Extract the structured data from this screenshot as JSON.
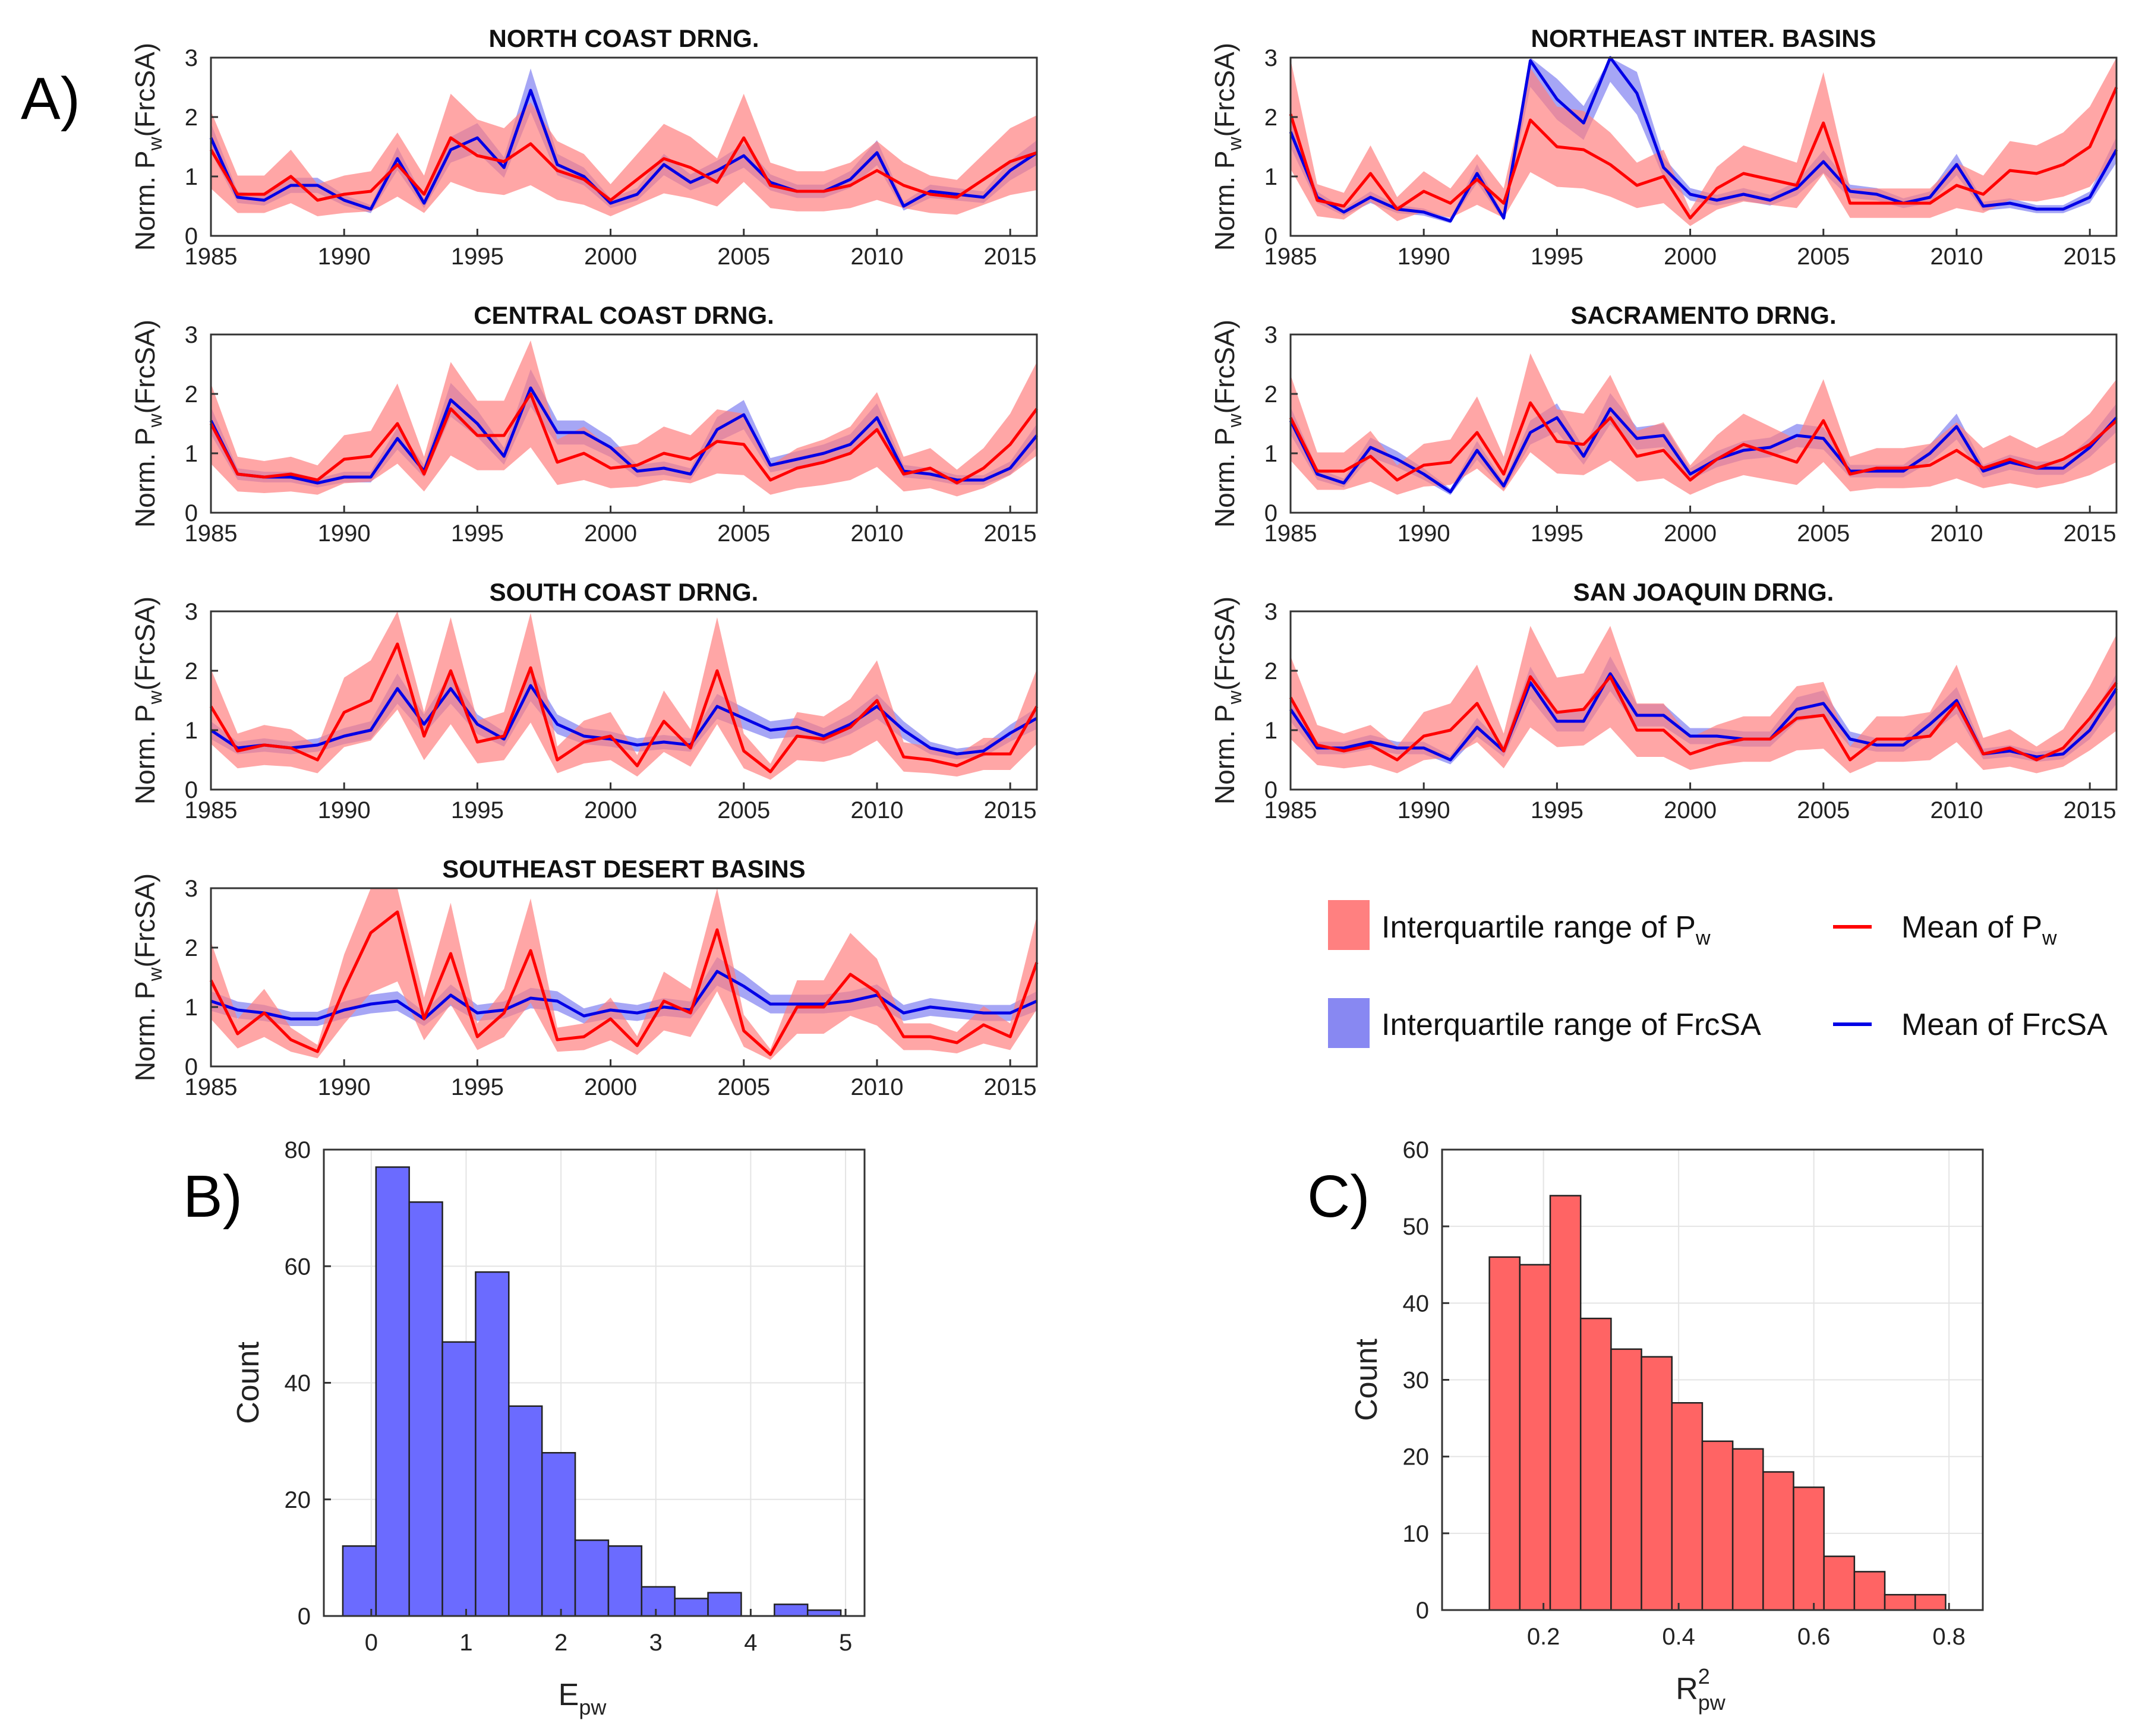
{
  "panel_labels": {
    "A": "A)",
    "B": "B)",
    "C": "C)"
  },
  "colors": {
    "pw_mean": "#ff0000",
    "pw_band": "#ff8080",
    "frcsa_mean": "#0000e6",
    "frcsa_band": "#8888f2",
    "hist_b": "#6b6bff",
    "hist_c": "#ff6464"
  },
  "legend": {
    "pw_iqr": "Interquartile range of P",
    "pw_iqr_sub": "w",
    "pw_mean": "Mean of P",
    "pw_mean_sub": "w",
    "fs_iqr": "Interquartile range of FrcSA",
    "fs_mean": "Mean of FrcSA"
  },
  "chart_data": [
    {
      "type": "line",
      "title": "NORTH COAST DRNG.",
      "ylabel": "Norm. P_w(FrcSA)",
      "ylabel_pre": "Norm. P",
      "ylabel_sub": "w",
      "ylabel_post": "(FrcSA)",
      "xlim": [
        1985,
        2016
      ],
      "ylim": [
        0,
        3
      ],
      "xticks": [
        1985,
        1990,
        1995,
        2000,
        2005,
        2010,
        2015
      ],
      "yticks": [
        0,
        1,
        2,
        3
      ],
      "x": [
        1985,
        1986,
        1987,
        1988,
        1989,
        1990,
        1991,
        1992,
        1993,
        1994,
        1995,
        1996,
        1997,
        1998,
        1999,
        2000,
        2001,
        2002,
        2003,
        2004,
        2005,
        2006,
        2007,
        2008,
        2009,
        2010,
        2011,
        2012,
        2013,
        2014,
        2015,
        2016
      ],
      "series": [
        {
          "name": "Mean of P_w",
          "values": [
            1.45,
            0.7,
            0.7,
            1.0,
            0.6,
            0.7,
            0.75,
            1.2,
            0.7,
            1.65,
            1.35,
            1.25,
            1.55,
            1.1,
            0.95,
            0.6,
            0.95,
            1.3,
            1.15,
            0.9,
            1.65,
            0.85,
            0.75,
            0.75,
            0.85,
            1.1,
            0.85,
            0.7,
            0.65,
            0.95,
            1.25,
            1.4
          ]
        },
        {
          "name": "Mean of FrcSA",
          "values": [
            1.65,
            0.65,
            0.6,
            0.85,
            0.85,
            0.6,
            0.45,
            1.3,
            0.55,
            1.45,
            1.65,
            1.15,
            2.45,
            1.2,
            1.0,
            0.55,
            0.7,
            1.2,
            0.9,
            1.1,
            1.35,
            0.9,
            0.75,
            0.75,
            0.95,
            1.4,
            0.5,
            0.75,
            0.7,
            0.65,
            1.1,
            1.4
          ]
        }
      ]
    },
    {
      "type": "line",
      "title": "NORTHEAST INTER. BASINS",
      "ylabel": "Norm. P_w(FrcSA)",
      "ylabel_pre": "Norm. P",
      "ylabel_sub": "w",
      "ylabel_post": "(FrcSA)",
      "xlim": [
        1985,
        2016
      ],
      "ylim": [
        0,
        3
      ],
      "xticks": [
        1985,
        1990,
        1995,
        2000,
        2005,
        2010,
        2015
      ],
      "yticks": [
        0,
        1,
        2,
        3
      ],
      "x": [
        1985,
        1986,
        1987,
        1988,
        1989,
        1990,
        1991,
        1992,
        1993,
        1994,
        1995,
        1996,
        1997,
        1998,
        1999,
        2000,
        2001,
        2002,
        2003,
        2004,
        2005,
        2006,
        2007,
        2008,
        2009,
        2010,
        2011,
        2012,
        2013,
        2014,
        2015,
        2016
      ],
      "series": [
        {
          "name": "Mean of P_w",
          "values": [
            2.05,
            0.6,
            0.5,
            1.05,
            0.45,
            0.75,
            0.55,
            0.95,
            0.55,
            1.95,
            1.5,
            1.45,
            1.2,
            0.85,
            1.0,
            0.3,
            0.8,
            1.05,
            0.95,
            0.85,
            1.9,
            0.55,
            0.55,
            0.55,
            0.55,
            0.85,
            0.7,
            1.1,
            1.05,
            1.2,
            1.5,
            2.5
          ]
        },
        {
          "name": "Mean of FrcSA",
          "values": [
            1.75,
            0.65,
            0.4,
            0.65,
            0.45,
            0.4,
            0.25,
            1.05,
            0.3,
            2.95,
            2.3,
            1.9,
            3.05,
            2.4,
            1.15,
            0.7,
            0.6,
            0.7,
            0.6,
            0.8,
            1.25,
            0.75,
            0.7,
            0.55,
            0.65,
            1.2,
            0.5,
            0.55,
            0.45,
            0.45,
            0.65,
            1.45
          ]
        }
      ]
    },
    {
      "type": "line",
      "title": "CENTRAL COAST DRNG.",
      "ylabel": "Norm. P_w(FrcSA)",
      "ylabel_pre": "Norm. P",
      "ylabel_sub": "w",
      "ylabel_post": "(FrcSA)",
      "xlim": [
        1985,
        2016
      ],
      "ylim": [
        0,
        3
      ],
      "xticks": [
        1985,
        1990,
        1995,
        2000,
        2005,
        2010,
        2015
      ],
      "yticks": [
        0,
        1,
        2,
        3
      ],
      "x": [
        1985,
        1986,
        1987,
        1988,
        1989,
        1990,
        1991,
        1992,
        1993,
        1994,
        1995,
        1996,
        1997,
        1998,
        1999,
        2000,
        2001,
        2002,
        2003,
        2004,
        2005,
        2006,
        2007,
        2008,
        2009,
        2010,
        2011,
        2012,
        2013,
        2014,
        2015,
        2016
      ],
      "series": [
        {
          "name": "Mean of P_w",
          "values": [
            1.5,
            0.65,
            0.6,
            0.65,
            0.55,
            0.9,
            0.95,
            1.5,
            0.65,
            1.75,
            1.3,
            1.3,
            2.0,
            0.85,
            1.0,
            0.75,
            0.8,
            1.0,
            0.9,
            1.2,
            1.15,
            0.55,
            0.75,
            0.85,
            1.0,
            1.4,
            0.65,
            0.75,
            0.5,
            0.75,
            1.15,
            1.75
          ]
        },
        {
          "name": "Mean of FrcSA",
          "values": [
            1.55,
            0.65,
            0.6,
            0.6,
            0.5,
            0.6,
            0.6,
            1.25,
            0.7,
            1.9,
            1.5,
            0.95,
            2.1,
            1.35,
            1.35,
            1.1,
            0.7,
            0.75,
            0.65,
            1.4,
            1.65,
            0.8,
            0.9,
            1.0,
            1.15,
            1.6,
            0.7,
            0.65,
            0.55,
            0.55,
            0.75,
            1.3
          ]
        }
      ]
    },
    {
      "type": "line",
      "title": "SACRAMENTO DRNG.",
      "ylabel": "Norm. P_w(FrcSA)",
      "ylabel_pre": "Norm. P",
      "ylabel_sub": "w",
      "ylabel_post": "(FrcSA)",
      "xlim": [
        1985,
        2016
      ],
      "ylim": [
        0,
        3
      ],
      "xticks": [
        1985,
        1990,
        1995,
        2000,
        2005,
        2010,
        2015
      ],
      "yticks": [
        0,
        1,
        2,
        3
      ],
      "x": [
        1985,
        1986,
        1987,
        1988,
        1989,
        1990,
        1991,
        1992,
        1993,
        1994,
        1995,
        1996,
        1997,
        1998,
        1999,
        2000,
        2001,
        2002,
        2003,
        2004,
        2005,
        2006,
        2007,
        2008,
        2009,
        2010,
        2011,
        2012,
        2013,
        2014,
        2015,
        2016
      ],
      "series": [
        {
          "name": "Mean of P_w",
          "values": [
            1.6,
            0.7,
            0.7,
            0.95,
            0.55,
            0.8,
            0.85,
            1.35,
            0.65,
            1.85,
            1.2,
            1.15,
            1.6,
            0.95,
            1.05,
            0.55,
            0.9,
            1.15,
            1.0,
            0.85,
            1.55,
            0.65,
            0.75,
            0.75,
            0.8,
            1.05,
            0.75,
            0.9,
            0.75,
            0.9,
            1.15,
            1.55
          ]
        },
        {
          "name": "Mean of FrcSA",
          "values": [
            1.55,
            0.65,
            0.5,
            1.1,
            0.9,
            0.65,
            0.35,
            1.05,
            0.45,
            1.35,
            1.6,
            0.95,
            1.75,
            1.25,
            1.3,
            0.65,
            0.9,
            1.05,
            1.1,
            1.3,
            1.25,
            0.7,
            0.7,
            0.7,
            1.0,
            1.45,
            0.7,
            0.85,
            0.75,
            0.75,
            1.1,
            1.6
          ]
        }
      ]
    },
    {
      "type": "line",
      "title": "SOUTH COAST DRNG.",
      "ylabel": "Norm. P_w(FrcSA)",
      "ylabel_pre": "Norm. P",
      "ylabel_sub": "w",
      "ylabel_post": "(FrcSA)",
      "xlim": [
        1985,
        2016
      ],
      "ylim": [
        0,
        3
      ],
      "xticks": [
        1985,
        1990,
        1995,
        2000,
        2005,
        2010,
        2015
      ],
      "yticks": [
        0,
        1,
        2,
        3
      ],
      "x": [
        1985,
        1986,
        1987,
        1988,
        1989,
        1990,
        1991,
        1992,
        1993,
        1994,
        1995,
        1996,
        1997,
        1998,
        1999,
        2000,
        2001,
        2002,
        2003,
        2004,
        2005,
        2006,
        2007,
        2008,
        2009,
        2010,
        2011,
        2012,
        2013,
        2014,
        2015,
        2016
      ],
      "series": [
        {
          "name": "Mean of P_w",
          "values": [
            1.4,
            0.65,
            0.75,
            0.7,
            0.5,
            1.3,
            1.5,
            2.45,
            0.9,
            2.0,
            0.8,
            0.9,
            2.05,
            0.5,
            0.8,
            0.9,
            0.4,
            1.15,
            0.7,
            2.0,
            0.65,
            0.3,
            0.9,
            0.85,
            1.05,
            1.5,
            0.55,
            0.5,
            0.4,
            0.6,
            0.6,
            1.4
          ]
        },
        {
          "name": "Mean of FrcSA",
          "values": [
            1.0,
            0.7,
            0.75,
            0.7,
            0.75,
            0.9,
            1.0,
            1.7,
            1.1,
            1.7,
            1.1,
            0.85,
            1.75,
            1.1,
            0.9,
            0.85,
            0.75,
            0.8,
            0.75,
            1.4,
            1.2,
            1.0,
            1.05,
            0.9,
            1.1,
            1.4,
            1.0,
            0.7,
            0.6,
            0.65,
            0.95,
            1.2
          ]
        }
      ]
    },
    {
      "type": "line",
      "title": "SAN JOAQUIN DRNG.",
      "ylabel": "Norm. P_w(FrcSA)",
      "ylabel_pre": "Norm. P",
      "ylabel_sub": "w",
      "ylabel_post": "(FrcSA)",
      "xlim": [
        1985,
        2016
      ],
      "ylim": [
        0,
        3
      ],
      "xticks": [
        1985,
        1990,
        1995,
        2000,
        2005,
        2010,
        2015
      ],
      "yticks": [
        0,
        1,
        2,
        3
      ],
      "x": [
        1985,
        1986,
        1987,
        1988,
        1989,
        1990,
        1991,
        1992,
        1993,
        1994,
        1995,
        1996,
        1997,
        1998,
        1999,
        2000,
        2001,
        2002,
        2003,
        2004,
        2005,
        2006,
        2007,
        2008,
        2009,
        2010,
        2011,
        2012,
        2013,
        2014,
        2015,
        2016
      ],
      "series": [
        {
          "name": "Mean of P_w",
          "values": [
            1.55,
            0.75,
            0.65,
            0.75,
            0.5,
            0.9,
            1.0,
            1.45,
            0.65,
            1.9,
            1.3,
            1.35,
            1.9,
            1.0,
            1.0,
            0.6,
            0.75,
            0.85,
            0.85,
            1.2,
            1.25,
            0.5,
            0.85,
            0.85,
            0.9,
            1.45,
            0.6,
            0.7,
            0.5,
            0.7,
            1.2,
            1.8
          ]
        },
        {
          "name": "Mean of FrcSA",
          "values": [
            1.35,
            0.7,
            0.7,
            0.8,
            0.7,
            0.7,
            0.5,
            1.05,
            0.65,
            1.8,
            1.15,
            1.15,
            1.95,
            1.25,
            1.25,
            0.9,
            0.9,
            0.85,
            0.85,
            1.35,
            1.45,
            0.85,
            0.75,
            0.75,
            1.1,
            1.5,
            0.6,
            0.65,
            0.55,
            0.6,
            1.0,
            1.7
          ]
        }
      ]
    },
    {
      "type": "line",
      "title": "SOUTHEAST DESERT BASINS",
      "ylabel": "Norm. P_w(FrcSA)",
      "ylabel_pre": "Norm. P",
      "ylabel_sub": "w",
      "ylabel_post": "(FrcSA)",
      "xlim": [
        1985,
        2016
      ],
      "ylim": [
        0,
        3
      ],
      "xticks": [
        1985,
        1990,
        1995,
        2000,
        2005,
        2010,
        2015
      ],
      "yticks": [
        0,
        1,
        2,
        3
      ],
      "x": [
        1985,
        1986,
        1987,
        1988,
        1989,
        1990,
        1991,
        1992,
        1993,
        1994,
        1995,
        1996,
        1997,
        1998,
        1999,
        2000,
        2001,
        2002,
        2003,
        2004,
        2005,
        2006,
        2007,
        2008,
        2009,
        2010,
        2011,
        2012,
        2013,
        2014,
        2015,
        2016
      ],
      "series": [
        {
          "name": "Mean of P_w",
          "values": [
            1.45,
            0.55,
            0.9,
            0.45,
            0.25,
            1.3,
            2.25,
            2.6,
            0.8,
            1.9,
            0.5,
            0.9,
            1.95,
            0.45,
            0.5,
            0.8,
            0.35,
            1.1,
            0.9,
            2.3,
            0.6,
            0.2,
            1.0,
            1.0,
            1.55,
            1.25,
            0.5,
            0.5,
            0.4,
            0.7,
            0.5,
            1.75
          ]
        },
        {
          "name": "Mean of FrcSA",
          "values": [
            1.1,
            0.95,
            0.9,
            0.8,
            0.8,
            0.95,
            1.05,
            1.1,
            0.8,
            1.2,
            0.9,
            0.95,
            1.15,
            1.1,
            0.85,
            0.95,
            0.9,
            1.0,
            0.95,
            1.6,
            1.35,
            1.05,
            1.05,
            1.05,
            1.1,
            1.2,
            0.9,
            1.0,
            0.95,
            0.9,
            0.9,
            1.1
          ]
        }
      ]
    },
    {
      "type": "bar",
      "panel": "B)",
      "title": "",
      "xlabel": "E_pw",
      "xlabel_main": "E",
      "xlabel_sub": "pw",
      "ylabel": "Count",
      "xlim": [
        -0.5,
        5.2
      ],
      "ylim": [
        0,
        80
      ],
      "xticks": [
        0,
        1,
        2,
        3,
        4,
        5
      ],
      "yticks": [
        0,
        20,
        40,
        60,
        80
      ],
      "bin_edges": [
        -0.3,
        0.05,
        0.4,
        0.75,
        1.1,
        1.45,
        1.8,
        2.15,
        2.5,
        2.85,
        3.2,
        3.55,
        3.9,
        4.25,
        4.6,
        4.95
      ],
      "values": [
        12,
        77,
        71,
        47,
        59,
        36,
        28,
        13,
        12,
        5,
        3,
        4,
        0,
        2,
        1
      ]
    },
    {
      "type": "bar",
      "panel": "C)",
      "title": "",
      "xlabel": "R^2_pw",
      "xlabel_main": "R",
      "xlabel_sup": "2",
      "xlabel_sub": "pw",
      "ylabel": "Count",
      "xlim": [
        0.05,
        0.85
      ],
      "ylim": [
        0,
        60
      ],
      "xticks": [
        0.2,
        0.4,
        0.6,
        0.8
      ],
      "yticks": [
        0,
        10,
        20,
        30,
        40,
        50,
        60
      ],
      "bin_edges": [
        0.12,
        0.165,
        0.21,
        0.255,
        0.3,
        0.345,
        0.39,
        0.435,
        0.48,
        0.525,
        0.57,
        0.615,
        0.66,
        0.705,
        0.75,
        0.795,
        0.84
      ],
      "values": [
        46,
        45,
        54,
        38,
        34,
        33,
        27,
        22,
        21,
        18,
        16,
        7,
        5,
        2,
        2,
        0
      ]
    }
  ]
}
